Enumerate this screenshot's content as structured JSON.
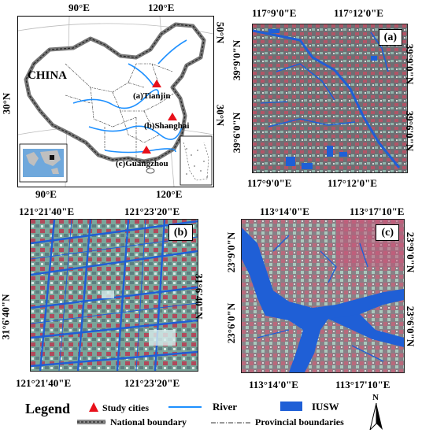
{
  "china_map": {
    "top_labels": [
      "90°E",
      "120°E"
    ],
    "bottom_labels": [
      "90°E",
      "120°E"
    ],
    "left_label": "30°N",
    "right_labels": [
      "50°N",
      "30°N"
    ],
    "country_label": "CHINA",
    "cities": [
      "(a)Tianjin",
      "(b)Shanghai",
      "(c)Guangzhou"
    ]
  },
  "panel_a": {
    "badge": "(a)",
    "top_labels": [
      "117°9'0\"E",
      "117°12'0\"E"
    ],
    "bottom_labels": [
      "117°9'0\"E",
      "117°12'0\"E"
    ],
    "left_labels": [
      "39°9'0\"N",
      "39°6'0\"N"
    ],
    "right_labels": [
      "39°9'0\"N",
      "39°6'0\"N"
    ]
  },
  "panel_b": {
    "badge": "(b)",
    "top_labels": [
      "121°21'40\"E",
      "121°23'20\"E"
    ],
    "bottom_labels": [
      "121°21'40\"E",
      "121°23'20\"E"
    ],
    "left_labels": [
      "31°6'40\"N"
    ],
    "right_labels": [
      "31°6'40\"N"
    ]
  },
  "panel_c": {
    "badge": "(c)",
    "top_labels": [
      "113°14'0\"E",
      "113°17'10\"E"
    ],
    "bottom_labels": [
      "113°14'0\"E",
      "113°17'10\"E"
    ],
    "left_labels": [
      "23°9'0\"N",
      "23°6'0\"N"
    ],
    "right_labels": [
      "23°9'0\"N",
      "23°6'0\"N"
    ]
  },
  "legend": {
    "title": "Legend",
    "items": {
      "study_cities": "Study cities",
      "river": "River",
      "iusw": "IUSW",
      "national_boundary": "National boundary",
      "provincial_boundaries": "Provincial boundaries"
    },
    "north": "N"
  },
  "colors": {
    "river": "#1e90ff",
    "water": "#1f5fd6",
    "city_marker": "#e8101a",
    "urban_red": "#b4505f",
    "vegetation": "#7aa59a"
  }
}
